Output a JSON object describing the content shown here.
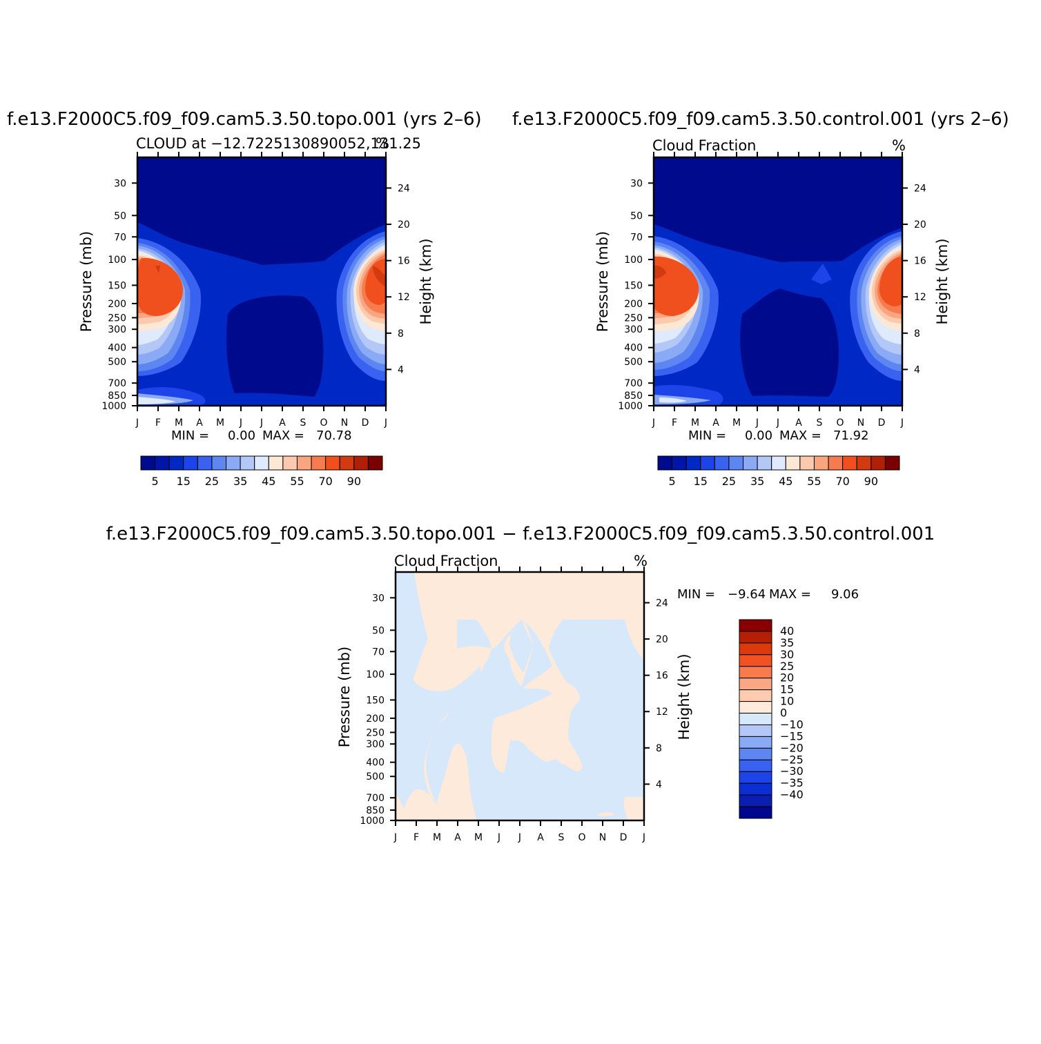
{
  "colors": {
    "seq": [
      "#000a8c",
      "#0016a8",
      "#0028c4",
      "#1c44e8",
      "#3a62f0",
      "#5e86f0",
      "#8aaaf5",
      "#b4c8f8",
      "#dfeafc",
      "#fde8d6",
      "#fbc9ad",
      "#f9a580",
      "#f67c50",
      "#f04f1e",
      "#d23a10",
      "#b01f08",
      "#7a0000"
    ],
    "diff": [
      "#00078f",
      "#0a1fb0",
      "#0b2fd0",
      "#1c44e8",
      "#3a62f0",
      "#5e86f0",
      "#8aaaf5",
      "#b4c8f8",
      "#d7e8fb",
      "#fdeadb",
      "#fccbb0",
      "#faa784",
      "#f67c50",
      "#f25222",
      "#dd3a0c",
      "#b51f05",
      "#8a0000"
    ]
  },
  "chart_data": [
    {
      "type": "heatmap",
      "title": "f.e13.F2000C5.f09_f09.cam5.3.50.topo.001 (yrs 2–6)",
      "subtitle": "CLOUD at −12.7225130890052,131.25",
      "units": "%",
      "xlabel": "",
      "ylabel": "Pressure (mb)",
      "ylabel_right": "Height (km)",
      "x_ticks": [
        "J",
        "F",
        "M",
        "A",
        "M",
        "J",
        "J",
        "A",
        "S",
        "O",
        "N",
        "D",
        "J"
      ],
      "y_ticks": [
        30,
        50,
        70,
        100,
        150,
        200,
        250,
        300,
        400,
        500,
        700,
        850,
        1000
      ],
      "y_ticks_right": [
        24,
        20,
        16,
        12,
        8,
        4
      ],
      "ylim": [
        1000,
        20
      ],
      "stats": {
        "min_label": "MIN =",
        "min": "0.00",
        "max_label": "MAX =",
        "max": "70.78"
      },
      "colorbar": {
        "orientation": "horizontal",
        "levels": [
          5,
          10,
          15,
          20,
          25,
          30,
          35,
          40,
          45,
          50,
          55,
          60,
          70,
          80,
          90,
          95
        ],
        "tick_labels": [
          "5",
          "15",
          "25",
          "35",
          "45",
          "55",
          "70",
          "90"
        ]
      }
    },
    {
      "type": "heatmap",
      "title": "f.e13.F2000C5.f09_f09.cam5.3.50.control.001 (yrs 2–6)",
      "subtitle": "Cloud Fraction",
      "units": "%",
      "xlabel": "",
      "ylabel": "Pressure (mb)",
      "ylabel_right": "Height (km)",
      "x_ticks": [
        "J",
        "F",
        "M",
        "A",
        "M",
        "J",
        "J",
        "A",
        "S",
        "O",
        "N",
        "D",
        "J"
      ],
      "y_ticks": [
        30,
        50,
        70,
        100,
        150,
        200,
        250,
        300,
        400,
        500,
        700,
        850,
        1000
      ],
      "y_ticks_right": [
        24,
        20,
        16,
        12,
        8,
        4
      ],
      "ylim": [
        1000,
        20
      ],
      "stats": {
        "min_label": "MIN =",
        "min": "0.00",
        "max_label": "MAX =",
        "max": "71.92"
      },
      "colorbar": {
        "orientation": "horizontal",
        "levels": [
          5,
          10,
          15,
          20,
          25,
          30,
          35,
          40,
          45,
          50,
          55,
          60,
          70,
          80,
          90,
          95
        ],
        "tick_labels": [
          "5",
          "15",
          "25",
          "35",
          "45",
          "55",
          "70",
          "90"
        ]
      }
    },
    {
      "type": "heatmap",
      "title": "f.e13.F2000C5.f09_f09.cam5.3.50.topo.001 − f.e13.F2000C5.f09_f09.cam5.3.50.control.001",
      "subtitle": "Cloud Fraction",
      "units": "%",
      "xlabel": "",
      "ylabel": "Pressure (mb)",
      "ylabel_right": "Height (km)",
      "x_ticks": [
        "J",
        "F",
        "M",
        "A",
        "M",
        "J",
        "J",
        "A",
        "S",
        "O",
        "N",
        "D",
        "J"
      ],
      "y_ticks": [
        30,
        50,
        70,
        100,
        150,
        200,
        250,
        300,
        400,
        500,
        700,
        850,
        1000
      ],
      "y_ticks_right": [
        24,
        20,
        16,
        12,
        8,
        4
      ],
      "ylim": [
        1000,
        20
      ],
      "stats": {
        "min_label": "MIN =",
        "min": "−9.64",
        "max_label": "MAX =",
        "max": "9.06"
      },
      "colorbar": {
        "orientation": "vertical",
        "levels": [
          40,
          35,
          30,
          25,
          20,
          15,
          10,
          0,
          -10,
          -15,
          -20,
          -25,
          -30,
          -35,
          -40
        ],
        "tick_labels": [
          "40",
          "35",
          "30",
          "25",
          "20",
          "15",
          "10",
          "0",
          "−10",
          "−15",
          "−20",
          "−25",
          "−30",
          "−35",
          "−40"
        ]
      }
    }
  ]
}
